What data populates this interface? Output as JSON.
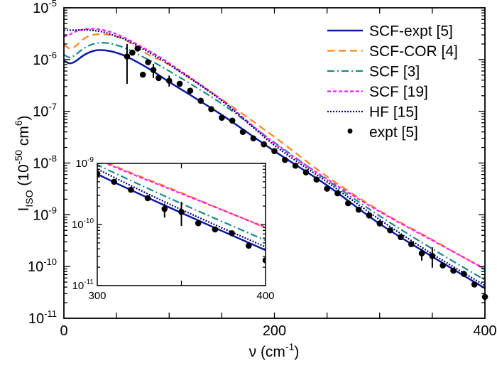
{
  "chart_data": {
    "type": "line",
    "title": "",
    "xlabel": {
      "main": "ν (cm",
      "exp": "-1",
      "suffix": ")"
    },
    "ylabel": {
      "main": "I",
      "sub": "ISO",
      "prefix": " (10",
      "exp1": "-50",
      "mid": " cm",
      "exp2": "6",
      "suffix": ")"
    },
    "xlim": [
      0,
      400
    ],
    "ylim": [
      1e-11,
      1e-05
    ],
    "yscale": "log",
    "grid": false,
    "legend_position": "top-right",
    "x_tick_labels": [
      "0",
      "200",
      "400"
    ],
    "y_tick_labels": [
      {
        "base": "10",
        "exp": "-5"
      },
      {
        "base": "10",
        "exp": "-6"
      },
      {
        "base": "10",
        "exp": "-7"
      },
      {
        "base": "10",
        "exp": "-8"
      },
      {
        "base": "10",
        "exp": "-9"
      },
      {
        "base": "10",
        "exp": "-10"
      },
      {
        "base": "10",
        "exp": "-11"
      }
    ],
    "series": [
      {
        "name": "SCF-expt [5]",
        "color": "#0d1aa0",
        "style": "solid",
        "x": [
          0,
          5,
          10,
          20,
          30,
          40,
          50,
          60,
          80,
          100,
          150,
          200,
          250,
          300,
          350,
          400
        ],
        "y": [
          9.5e-07,
          8.5e-07,
          9e-07,
          1.25e-06,
          1.5e-06,
          1.5e-06,
          1.35e-06,
          1.13e-06,
          6.8e-07,
          3.7e-07,
          8.5e-08,
          1.7e-08,
          3.7e-09,
          6.7e-10,
          1.55e-10,
          3.8e-11
        ]
      },
      {
        "name": "SCF-COR [4]",
        "color": "#ff8419",
        "style": "dashed",
        "x": [
          0,
          5,
          10,
          20,
          30,
          40,
          50,
          60,
          80,
          100,
          150,
          200,
          250,
          300,
          350,
          400
        ],
        "y": [
          1.95e-06,
          1.65e-06,
          1.75e-06,
          2.6e-06,
          3.05e-06,
          3.05e-06,
          2.8e-06,
          2.3e-06,
          1.25e-06,
          7.9e-07,
          1.7e-07,
          3.2e-08,
          5.5e-09,
          1.2e-09,
          3.3e-10,
          8.8e-11
        ]
      },
      {
        "name": "SCF [3]",
        "color": "#178a8a",
        "style": "dash-dot",
        "x": [
          0,
          5,
          10,
          20,
          30,
          40,
          50,
          60,
          80,
          100,
          150,
          200,
          250,
          300,
          350,
          400
        ],
        "y": [
          1.25e-06,
          1.1e-06,
          1.2e-06,
          1.7e-06,
          2.05e-06,
          2.1e-06,
          1.9e-06,
          1.6e-06,
          1e-06,
          6e-07,
          1.4e-07,
          2.5e-08,
          4.7e-09,
          9.5e-10,
          2.2e-10,
          5.5e-11
        ]
      },
      {
        "name": "SCF [19]",
        "color": "#ff19ff",
        "style": "short-dash",
        "x": [
          0,
          5,
          10,
          20,
          30,
          40,
          50,
          60,
          80,
          100,
          150,
          200,
          250,
          300,
          350,
          400
        ],
        "y": [
          2.8e-06,
          3e-06,
          3.4e-06,
          3.85e-06,
          3.9e-06,
          3.6e-06,
          3.1e-06,
          2.5e-06,
          1.5e-06,
          8.5e-07,
          1.65e-07,
          2.4e-08,
          4.9e-09,
          1.15e-09,
          3.2e-10,
          9e-11
        ]
      },
      {
        "name": "HF [15]",
        "color": "#000080",
        "style": "dotted",
        "x": [
          0,
          5,
          10,
          20,
          30,
          40,
          50,
          60,
          80,
          100,
          150,
          200,
          250,
          300,
          350,
          400
        ],
        "y": [
          3.7e-06,
          3.7e-06,
          3.7e-06,
          3.75e-06,
          3.6e-06,
          3.3e-06,
          2.8e-06,
          2.35e-06,
          1.4e-06,
          8e-07,
          1.6e-07,
          2.2e-08,
          4.3e-09,
          8.1e-10,
          1.75e-10,
          4.3e-11
        ]
      }
    ],
    "expt": {
      "name": "expt [5]",
      "color": "#000000",
      "x": [
        60,
        65,
        70,
        75,
        80,
        85,
        90,
        100,
        110,
        120,
        130,
        140,
        150,
        160,
        170,
        180,
        190,
        200,
        210,
        220,
        230,
        240,
        250,
        260,
        270,
        280,
        290,
        300,
        310,
        320,
        330,
        340,
        350,
        360,
        370,
        380,
        390,
        400
      ],
      "y": [
        1.15e-06,
        1.36e-06,
        1.63e-06,
        5.1e-07,
        8.9e-07,
        6.3e-07,
        4.4e-07,
        3.9e-07,
        3.4e-07,
        2.5e-07,
        1.6e-07,
        1.1e-07,
        7.5e-08,
        6.6e-08,
        4e-08,
        3e-08,
        2.3e-08,
        1.7e-08,
        1.15e-08,
        8.9e-09,
        6.6e-09,
        4.8e-09,
        3.2e-09,
        2.6e-09,
        1.67e-09,
        1.26e-09,
        9.7e-10,
        6.8e-10,
        5e-10,
        3.7e-10,
        2.7e-10,
        1.8e-10,
        1.6e-10,
        1.05e-10,
        8.3e-11,
        7.2e-11,
        4.5e-11,
        2.6e-11
      ],
      "error_bars": [
        {
          "x": 60,
          "low": 3.4e-07,
          "high": 2e-06
        },
        {
          "x": 85,
          "low": 4.4e-07,
          "high": 8.2e-07
        },
        {
          "x": 100,
          "low": 3e-07,
          "high": 4.9e-07
        },
        {
          "x": 340,
          "low": 1.3e-10,
          "high": 2.2e-10
        },
        {
          "x": 350,
          "low": 9.5e-11,
          "high": 2.35e-10
        }
      ]
    },
    "inset": {
      "xlim": [
        300,
        400
      ],
      "ylim": [
        1e-11,
        1e-09
      ],
      "yscale": "log",
      "x_tick_labels": [
        "300",
        "400"
      ],
      "y_tick_labels": [
        {
          "base": "10",
          "exp": "-9"
        },
        {
          "base": "10",
          "exp": "-10"
        },
        {
          "base": "10",
          "exp": "-11"
        }
      ]
    }
  }
}
